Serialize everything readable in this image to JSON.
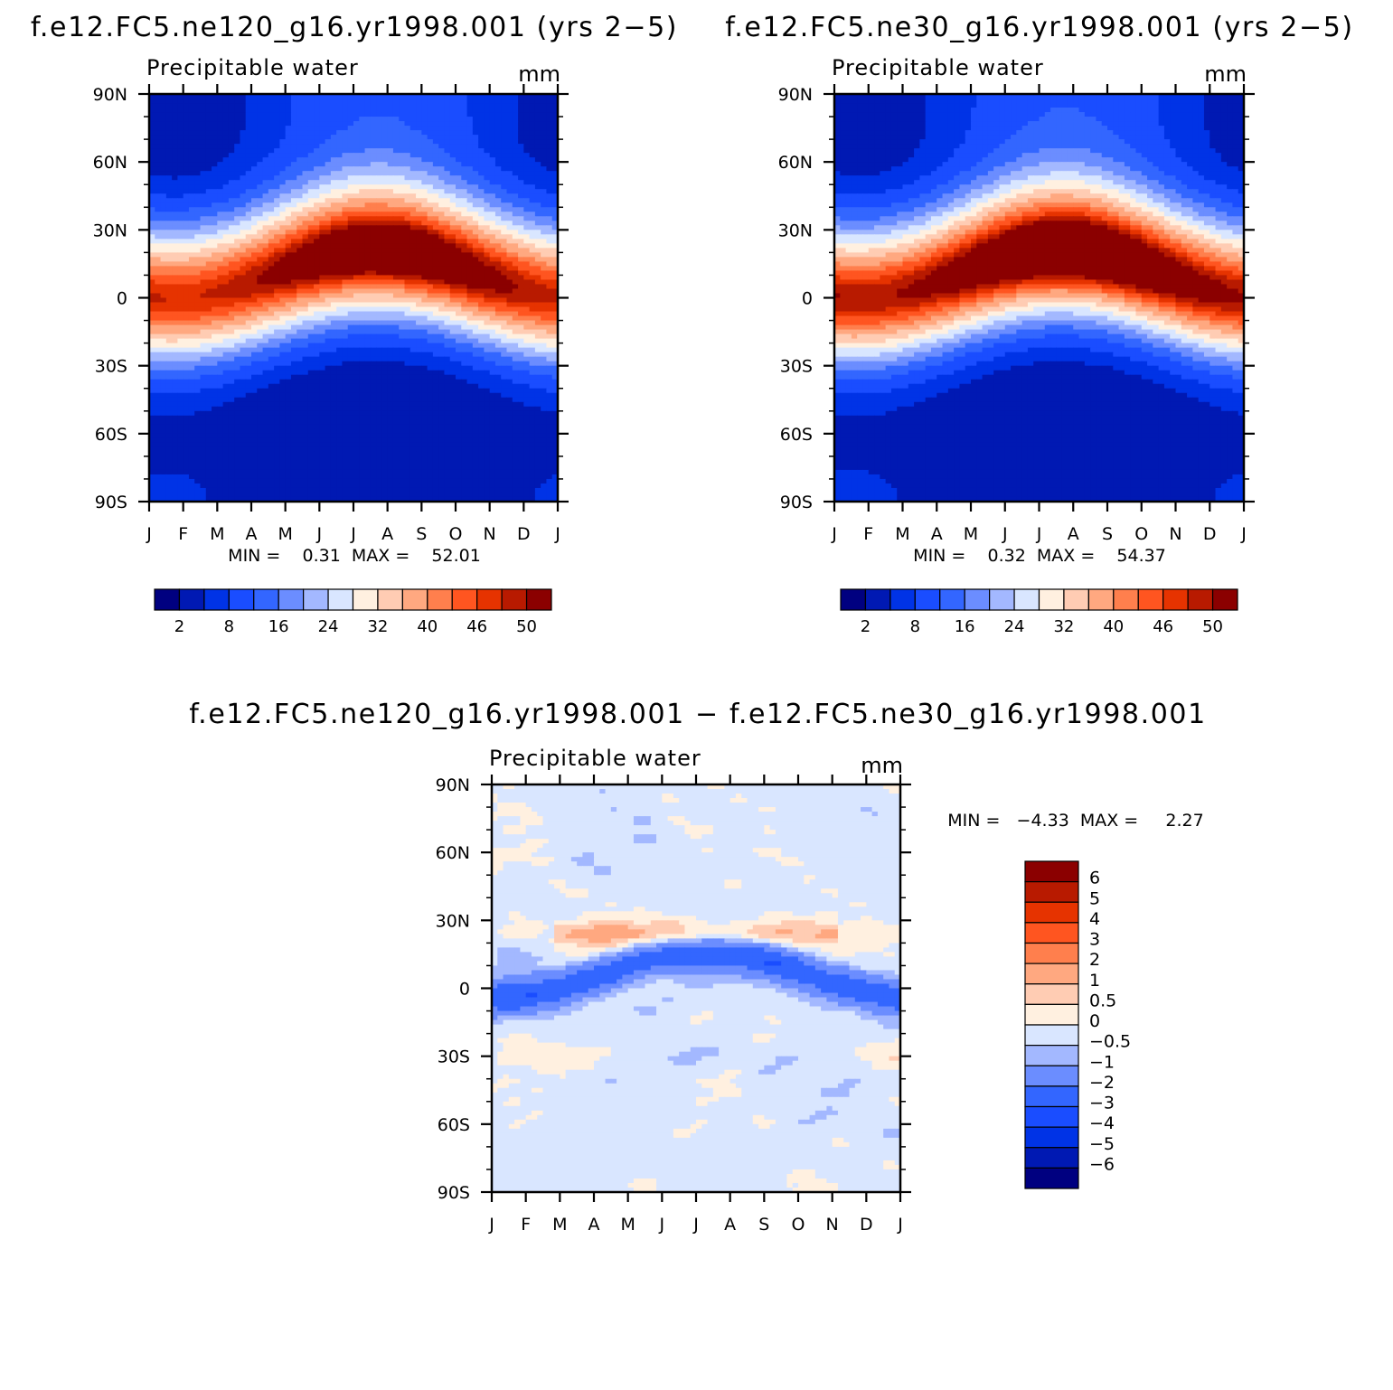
{
  "chart_data": [
    {
      "type": "heatmap",
      "title": "f.e12.FC5.ne120_g16.yr1998.001 (yrs 2−5)",
      "subtitle": "Precipitable water",
      "units": "mm",
      "x_ticks": [
        "J",
        "F",
        "M",
        "A",
        "M",
        "J",
        "J",
        "A",
        "S",
        "O",
        "N",
        "D",
        "J"
      ],
      "y_ticks": [
        "90N",
        "60N",
        "30N",
        "0",
        "30S",
        "60S",
        "90S"
      ],
      "stats_text": "MIN =    0.31  MAX =    52.01",
      "min": 0.31,
      "max": 52.01,
      "colorbar": {
        "orientation": "horizontal",
        "labels": [
          "2",
          "8",
          "16",
          "24",
          "32",
          "40",
          "46",
          "50"
        ],
        "colors": [
          "#000080",
          "#0019b3",
          "#0033e6",
          "#1a4dff",
          "#3366ff",
          "#6b8dff",
          "#a3b8ff",
          "#d9e6ff",
          "#fff0e0",
          "#ffccb3",
          "#ffa880",
          "#ff7f4d",
          "#ff5520",
          "#e63300",
          "#b81a00",
          "#8b0000"
        ]
      },
      "summer_pole_value": 5,
      "winter_pole_value": 1.5,
      "antarctic_base": 0.5,
      "equator_peak": 52
    },
    {
      "type": "heatmap",
      "title": "f.e12.FC5.ne30_g16.yr1998.001 (yrs 2−5)",
      "subtitle": "Precipitable water",
      "units": "mm",
      "x_ticks": [
        "J",
        "F",
        "M",
        "A",
        "M",
        "J",
        "J",
        "A",
        "S",
        "O",
        "N",
        "D",
        "J"
      ],
      "y_ticks": [
        "90N",
        "60N",
        "30N",
        "0",
        "30S",
        "60S",
        "90S"
      ],
      "stats_text": "MIN =    0.32  MAX =    54.37",
      "min": 0.32,
      "max": 54.37,
      "colorbar": {
        "orientation": "horizontal",
        "labels": [
          "2",
          "8",
          "16",
          "24",
          "32",
          "40",
          "46",
          "50"
        ],
        "colors": [
          "#000080",
          "#0019b3",
          "#0033e6",
          "#1a4dff",
          "#3366ff",
          "#6b8dff",
          "#a3b8ff",
          "#d9e6ff",
          "#fff0e0",
          "#ffccb3",
          "#ffa880",
          "#ff7f4d",
          "#ff5520",
          "#e63300",
          "#b81a00",
          "#8b0000"
        ]
      },
      "summer_pole_value": 5.5,
      "winter_pole_value": 1.8,
      "antarctic_base": 0.6,
      "equator_peak": 54
    },
    {
      "type": "heatmap",
      "title": "f.e12.FC5.ne120_g16.yr1998.001 − f.e12.FC5.ne30_g16.yr1998.001",
      "subtitle": "Precipitable water",
      "units": "mm",
      "x_ticks": [
        "J",
        "F",
        "M",
        "A",
        "M",
        "J",
        "J",
        "A",
        "S",
        "O",
        "N",
        "D",
        "J"
      ],
      "y_ticks": [
        "90N",
        "60N",
        "30N",
        "0",
        "30S",
        "60S",
        "90S"
      ],
      "stats_text": "MIN =   −4.33  MAX =     2.27",
      "min": -4.33,
      "max": 2.27,
      "colorbar": {
        "orientation": "vertical",
        "labels": [
          "6",
          "5",
          "4",
          "3",
          "2",
          "1",
          "0.5",
          "0",
          "−0.5",
          "−1",
          "−2",
          "−3",
          "−4",
          "−5",
          "−6"
        ],
        "colors": [
          "#8b0000",
          "#b81a00",
          "#e63300",
          "#ff5520",
          "#ff7f4d",
          "#ffa880",
          "#ffccb3",
          "#fff0e0",
          "#d9e6ff",
          "#a3b8ff",
          "#6b8dff",
          "#3366ff",
          "#1a4dff",
          "#0033e6",
          "#0019b3",
          "#000080"
        ]
      }
    }
  ]
}
